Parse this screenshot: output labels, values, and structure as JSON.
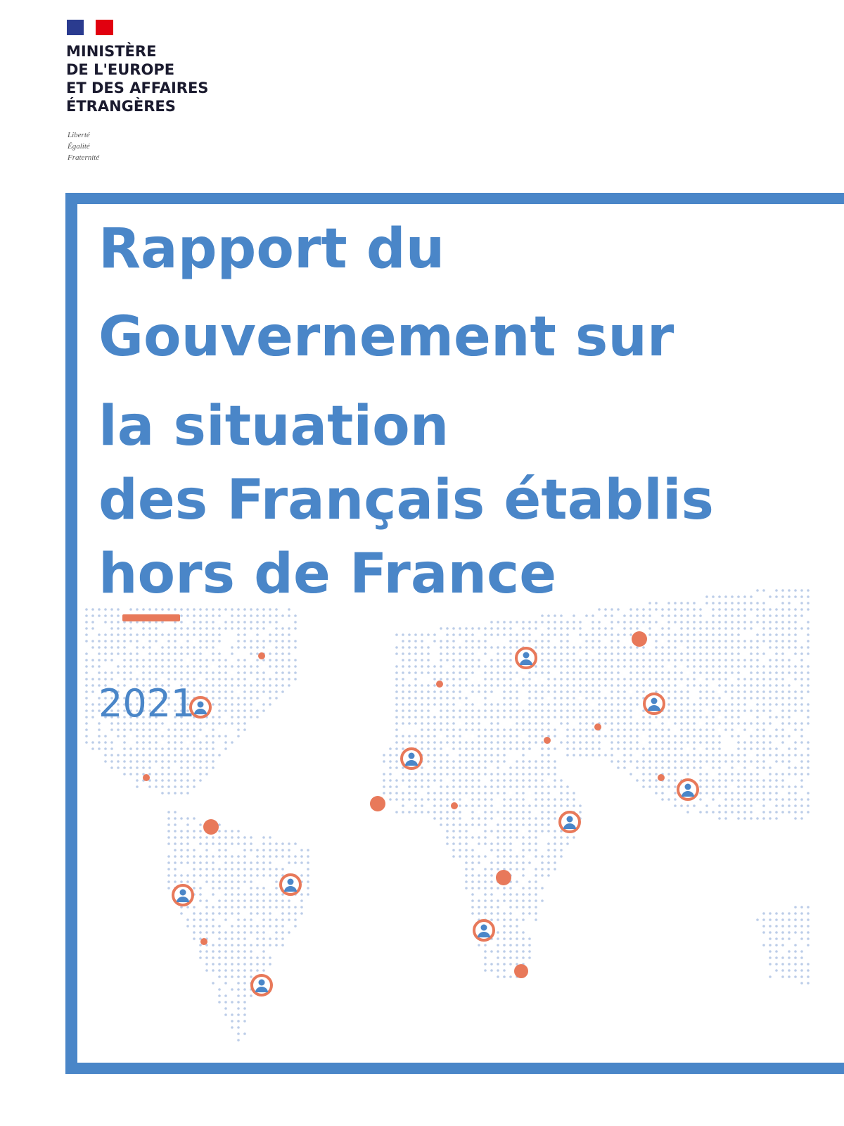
{
  "header": {
    "ministry": [
      "MINISTÈRE",
      "DE L'EUROPE",
      "ET DES AFFAIRES",
      "ÉTRANGÈRES"
    ],
    "motto": [
      "Liberté",
      "Égalité",
      "Fraternité"
    ]
  },
  "cover": {
    "title": [
      "Rapport du",
      "Gouvernement sur",
      "la situation",
      "des Français établis",
      "hors de France"
    ],
    "year": "2021"
  }
}
